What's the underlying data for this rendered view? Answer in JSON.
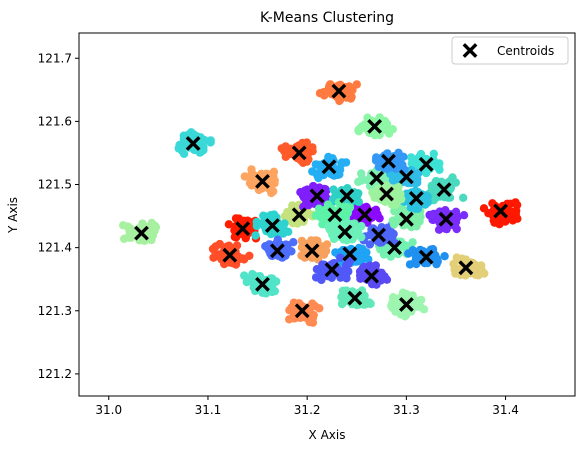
{
  "chart_data": {
    "type": "scatter",
    "title": "K-Means Clustering",
    "xlabel": "X Axis",
    "ylabel": "Y Axis",
    "xlim": [
      30.97,
      31.47
    ],
    "ylim": [
      121.165,
      121.74
    ],
    "xticks": [
      31.0,
      31.1,
      31.2,
      31.3,
      31.4
    ],
    "yticks": [
      121.2,
      121.3,
      121.4,
      121.5,
      121.6,
      121.7
    ],
    "xtick_labels": [
      "31.0",
      "31.1",
      "31.2",
      "31.3",
      "31.4"
    ],
    "ytick_labels": [
      "121.2",
      "121.3",
      "121.4",
      "121.5",
      "121.6",
      "121.7"
    ],
    "grid": false,
    "legend": {
      "placement": "top-right",
      "entries": [
        {
          "label": "Centroids",
          "marker": "X",
          "color": "#000000"
        }
      ]
    },
    "clusters": [
      {
        "color": "#ff1d00",
        "centroid": [
          31.135,
          121.43
        ]
      },
      {
        "color": "#ff4e28",
        "centroid": [
          31.122,
          121.388
        ]
      },
      {
        "color": "#fe1800",
        "centroid": [
          31.395,
          121.458
        ]
      },
      {
        "color": "#ff8a52",
        "centroid": [
          31.195,
          121.3
        ]
      },
      {
        "color": "#ff7a3e",
        "centroid": [
          31.232,
          121.648
        ]
      },
      {
        "color": "#ff5a2a",
        "centroid": [
          31.192,
          121.55
        ]
      },
      {
        "color": "#fda560",
        "centroid": [
          31.155,
          121.505
        ]
      },
      {
        "color": "#f7a15d",
        "centroid": [
          31.205,
          121.395
        ]
      },
      {
        "color": "#e2cf78",
        "centroid": [
          31.36,
          121.368
        ]
      },
      {
        "color": "#c5e27f",
        "centroid": [
          31.192,
          121.452
        ]
      },
      {
        "color": "#a6f0a0",
        "centroid": [
          31.033,
          121.423
        ]
      },
      {
        "color": "#9ef5b0",
        "centroid": [
          31.3,
          121.31
        ]
      },
      {
        "color": "#8df7a5",
        "centroid": [
          31.268,
          121.592
        ]
      },
      {
        "color": "#7ff0b2",
        "centroid": [
          31.27,
          121.51
        ]
      },
      {
        "color": "#74f1b0",
        "centroid": [
          31.288,
          121.4
        ]
      },
      {
        "color": "#52e4c8",
        "centroid": [
          31.155,
          121.342
        ]
      },
      {
        "color": "#3de2d5",
        "centroid": [
          31.32,
          121.532
        ]
      },
      {
        "color": "#3bd8d8",
        "centroid": [
          31.085,
          121.565
        ]
      },
      {
        "color": "#2ed3cf",
        "centroid": [
          31.165,
          121.435
        ]
      },
      {
        "color": "#24aef4",
        "centroid": [
          31.222,
          121.528
        ]
      },
      {
        "color": "#1fa3f5",
        "centroid": [
          31.243,
          121.39
        ]
      },
      {
        "color": "#2090f0",
        "centroid": [
          31.32,
          121.385
        ]
      },
      {
        "color": "#4d6dfb",
        "centroid": [
          31.17,
          121.395
        ]
      },
      {
        "color": "#5058f8",
        "centroid": [
          31.225,
          121.365
        ]
      },
      {
        "color": "#5a4af4",
        "centroid": [
          31.265,
          121.355
        ]
      },
      {
        "color": "#7f1ffb",
        "centroid": [
          31.21,
          121.482
        ]
      },
      {
        "color": "#7a2cfa",
        "centroid": [
          31.34,
          121.445
        ]
      },
      {
        "color": "#8a0bfd",
        "centroid": [
          31.258,
          121.452
        ]
      },
      {
        "color": "#4e66f8",
        "centroid": [
          31.272,
          121.42
        ]
      },
      {
        "color": "#30bde8",
        "centroid": [
          31.3,
          121.512
        ]
      },
      {
        "color": "#2fd0c6",
        "centroid": [
          31.24,
          121.482
        ]
      },
      {
        "color": "#7cf0a8",
        "centroid": [
          31.3,
          121.445
        ]
      },
      {
        "color": "#4bdac0",
        "centroid": [
          31.338,
          121.492
        ]
      },
      {
        "color": "#62e7b8",
        "centroid": [
          31.248,
          121.32
        ]
      },
      {
        "color": "#2bc2e0",
        "centroid": [
          31.31,
          121.478
        ]
      },
      {
        "color": "#9df29e",
        "centroid": [
          31.28,
          121.485
        ]
      },
      {
        "color": "#3498f6",
        "centroid": [
          31.282,
          121.537
        ]
      },
      {
        "color": "#5cf2a8",
        "centroid": [
          31.228,
          121.452
        ]
      },
      {
        "color": "#6af0b8",
        "centroid": [
          31.238,
          121.425
        ]
      }
    ]
  }
}
